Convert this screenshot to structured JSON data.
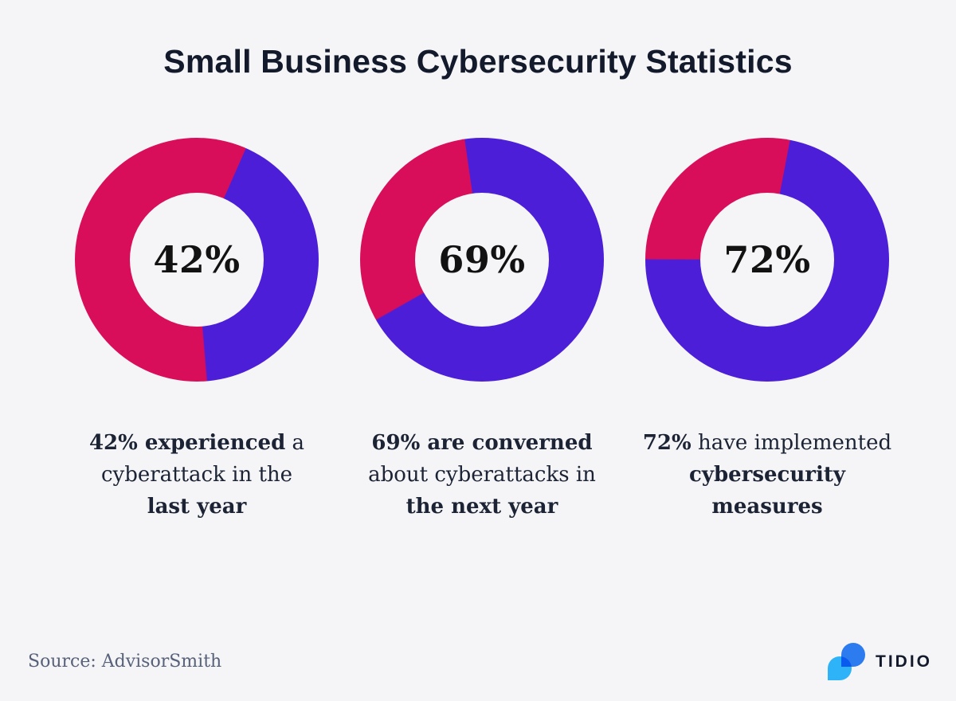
{
  "title": "Small Business Cybersecurity Statistics",
  "theme": {
    "background": "#F5F5F7",
    "title_color": "#131A2C",
    "caption_color": "#1B2334",
    "value_slice_color": "#4C1ED7",
    "remainder_slice_color": "#D90E5B"
  },
  "chart_data": [
    {
      "type": "pie",
      "donut": true,
      "center_label": "42%",
      "categories": [
        "value",
        "remainder"
      ],
      "values": [
        42,
        58
      ],
      "slice_colors": [
        "#4C1ED7",
        "#D90E5B"
      ],
      "rotation_deg": 24,
      "caption_text": "42% experienced a cyberattack in the last year",
      "caption_lines": [
        [
          {
            "text": "42% experienced",
            "bold": true
          },
          {
            "text": " a",
            "bold": false
          }
        ],
        [
          {
            "text": "cyberattack in the",
            "bold": false
          }
        ],
        [
          {
            "text": "last year",
            "bold": true
          }
        ]
      ]
    },
    {
      "type": "pie",
      "donut": true,
      "center_label": "69%",
      "categories": [
        "value",
        "remainder"
      ],
      "values": [
        69,
        31
      ],
      "slice_colors": [
        "#4C1ED7",
        "#D90E5B"
      ],
      "rotation_deg": -8,
      "caption_text": "69% are converned about cyberattacks in the next year",
      "caption_lines": [
        [
          {
            "text": "69% are converned",
            "bold": true
          }
        ],
        [
          {
            "text": "about cyberattacks in",
            "bold": false
          }
        ],
        [
          {
            "text": "the next year",
            "bold": true
          }
        ]
      ]
    },
    {
      "type": "pie",
      "donut": true,
      "center_label": "72%",
      "categories": [
        "value",
        "remainder"
      ],
      "values": [
        72,
        28
      ],
      "slice_colors": [
        "#4C1ED7",
        "#D90E5B"
      ],
      "rotation_deg": 11,
      "caption_text": "72% have implemented cybersecurity measures",
      "caption_lines": [
        [
          {
            "text": "72%",
            "bold": true
          },
          {
            "text": " have implemented",
            "bold": false
          }
        ],
        [
          {
            "text": "cybersecurity",
            "bold": true
          }
        ],
        [
          {
            "text": "measures",
            "bold": true
          }
        ]
      ]
    }
  ],
  "footer": {
    "source": "Source: AdvisorSmith",
    "brand_name": "TIDIO",
    "logo_colors": {
      "dark_blue": "#2F81F7",
      "light_blue": "#2FB3F8"
    }
  }
}
